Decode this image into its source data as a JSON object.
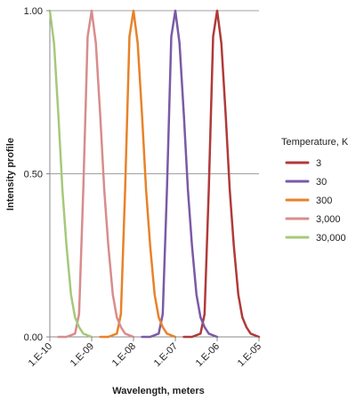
{
  "chart_data": {
    "type": "line",
    "xlabel": "Wavelength, meters",
    "ylabel": "Intensity profile",
    "x_scale": "log",
    "xlim": [
      1e-10,
      1e-05
    ],
    "ylim": [
      0,
      1
    ],
    "x_ticks": [
      {
        "value": 1e-10,
        "label": "1.E-10"
      },
      {
        "value": 1e-09,
        "label": "1.E-09"
      },
      {
        "value": 1e-08,
        "label": "1.E-08"
      },
      {
        "value": 1e-07,
        "label": "1.E-07"
      },
      {
        "value": 1e-06,
        "label": "1.E-06"
      },
      {
        "value": 1e-05,
        "label": "1.E-05"
      }
    ],
    "y_ticks": [
      {
        "value": 0,
        "label": "0.00"
      },
      {
        "value": 0.5,
        "label": "0.50"
      },
      {
        "value": 1,
        "label": "1.00"
      }
    ],
    "grid": "horizontal",
    "legend_title": "Temperature, K",
    "legend_position": "right",
    "series": [
      {
        "name": "3",
        "color": "#b03a3a",
        "points": [
          [
            1.6e-07,
            0
          ],
          [
            2.5e-07,
            0
          ],
          [
            4e-07,
            0.01
          ],
          [
            5e-07,
            0.07
          ],
          [
            6.3e-07,
            0.45
          ],
          [
            8e-07,
            0.92
          ],
          [
            1e-06,
            1.0
          ],
          [
            1.26e-06,
            0.9
          ],
          [
            1.6e-06,
            0.68
          ],
          [
            2e-06,
            0.45
          ],
          [
            2.5e-06,
            0.28
          ],
          [
            3.2e-06,
            0.13
          ],
          [
            4e-06,
            0.06
          ],
          [
            5e-06,
            0.03
          ],
          [
            6.3e-06,
            0.01
          ],
          [
            1e-05,
            0
          ]
        ]
      },
      {
        "name": "30",
        "color": "#7a5aa6",
        "points": [
          [
            1.6e-08,
            0
          ],
          [
            2.5e-08,
            0
          ],
          [
            4e-08,
            0.01
          ],
          [
            5e-08,
            0.07
          ],
          [
            6.3e-08,
            0.45
          ],
          [
            8e-08,
            0.92
          ],
          [
            1e-07,
            1.0
          ],
          [
            1.26e-07,
            0.9
          ],
          [
            1.6e-07,
            0.68
          ],
          [
            2e-07,
            0.45
          ],
          [
            2.5e-07,
            0.28
          ],
          [
            3.2e-07,
            0.13
          ],
          [
            4e-07,
            0.06
          ],
          [
            5e-07,
            0.03
          ],
          [
            6.3e-07,
            0.01
          ],
          [
            1e-06,
            0
          ]
        ]
      },
      {
        "name": "300",
        "color": "#e8822a",
        "points": [
          [
            1.6e-09,
            0
          ],
          [
            2.5e-09,
            0
          ],
          [
            4e-09,
            0.01
          ],
          [
            5e-09,
            0.07
          ],
          [
            6.3e-09,
            0.45
          ],
          [
            8e-09,
            0.92
          ],
          [
            1e-08,
            1.0
          ],
          [
            1.26e-08,
            0.9
          ],
          [
            1.6e-08,
            0.68
          ],
          [
            2e-08,
            0.45
          ],
          [
            2.5e-08,
            0.28
          ],
          [
            3.2e-08,
            0.13
          ],
          [
            4e-08,
            0.06
          ],
          [
            5e-08,
            0.03
          ],
          [
            6.3e-08,
            0.01
          ],
          [
            1e-07,
            0
          ]
        ]
      },
      {
        "name": "3,000",
        "color": "#d98c8c",
        "points": [
          [
            1.6e-10,
            0
          ],
          [
            2.5e-10,
            0
          ],
          [
            4e-10,
            0.01
          ],
          [
            5e-10,
            0.07
          ],
          [
            6.3e-10,
            0.45
          ],
          [
            8e-10,
            0.92
          ],
          [
            1e-09,
            1.0
          ],
          [
            1.26e-09,
            0.9
          ],
          [
            1.6e-09,
            0.68
          ],
          [
            2e-09,
            0.45
          ],
          [
            2.5e-09,
            0.28
          ],
          [
            3.2e-09,
            0.13
          ],
          [
            4e-09,
            0.06
          ],
          [
            5e-09,
            0.03
          ],
          [
            6.3e-09,
            0.01
          ],
          [
            1e-08,
            0
          ]
        ]
      },
      {
        "name": "30,000",
        "color": "#a6c97a",
        "points": [
          [
            1e-10,
            1.0
          ],
          [
            1.26e-10,
            0.9
          ],
          [
            1.6e-10,
            0.68
          ],
          [
            2e-10,
            0.45
          ],
          [
            2.5e-10,
            0.28
          ],
          [
            3.2e-10,
            0.13
          ],
          [
            4e-10,
            0.06
          ],
          [
            5e-10,
            0.03
          ],
          [
            6.3e-10,
            0.01
          ],
          [
            1e-09,
            0
          ]
        ]
      }
    ]
  }
}
